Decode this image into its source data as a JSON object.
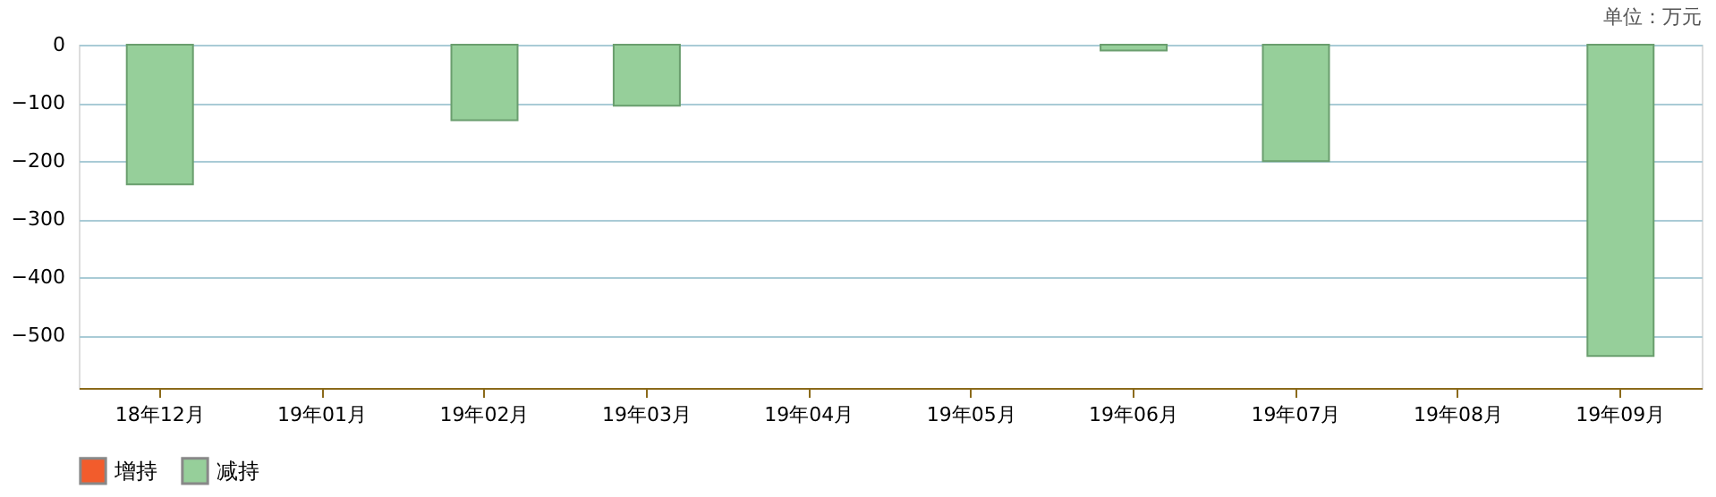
{
  "chart_data": {
    "type": "bar",
    "categories": [
      "18年12月",
      "19年01月",
      "19年02月",
      "19年03月",
      "19年04月",
      "19年05月",
      "19年06月",
      "19年07月",
      "19年08月",
      "19年09月"
    ],
    "series": [
      {
        "name": "增持",
        "color": "#f25c2c",
        "values": [
          null,
          null,
          null,
          null,
          null,
          null,
          null,
          null,
          null,
          null
        ]
      },
      {
        "name": "减持",
        "color": "#96cf9a",
        "values": [
          -240,
          null,
          -130,
          -105,
          null,
          null,
          -10,
          -200,
          null,
          -535
        ]
      }
    ],
    "ylim": [
      -590,
      0
    ],
    "yticks": [
      0,
      -100,
      -200,
      -300,
      -400,
      -500
    ],
    "grid": "y",
    "legend": "bottom",
    "annotations": [
      "单位：万元"
    ]
  }
}
